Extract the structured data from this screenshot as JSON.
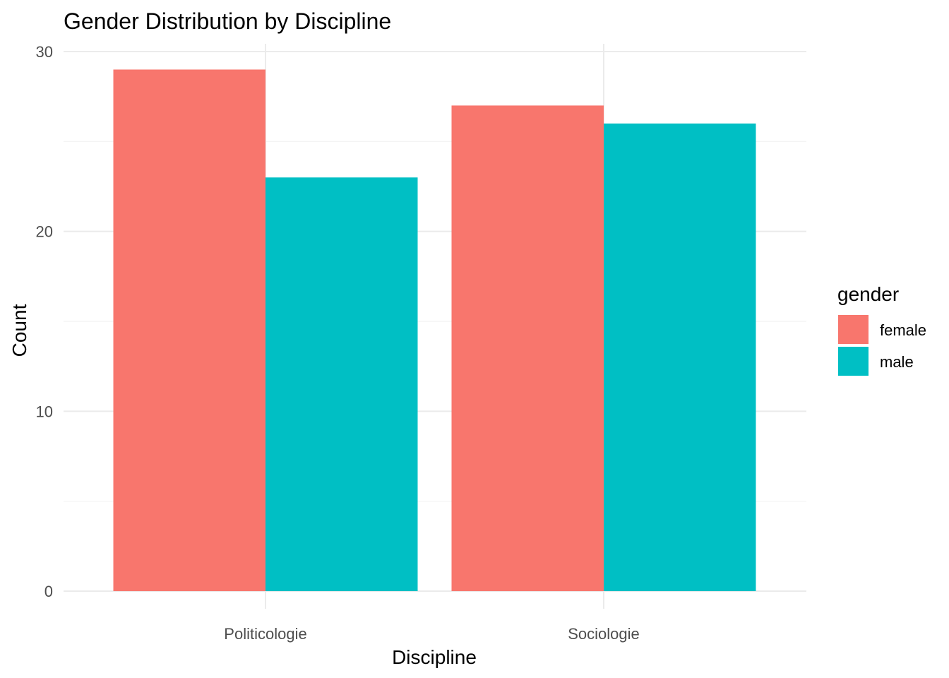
{
  "chart_data": {
    "type": "bar",
    "title": "Gender Distribution by Discipline",
    "xlabel": "Discipline",
    "ylabel": "Count",
    "categories": [
      "Politicologie",
      "Sociologie"
    ],
    "series": [
      {
        "name": "female",
        "values": [
          29,
          27
        ],
        "color": "#F8766D"
      },
      {
        "name": "male",
        "values": [
          23,
          26
        ],
        "color": "#00BFC4"
      }
    ],
    "ylim": [
      0,
      30
    ],
    "yticks": [
      0,
      10,
      20,
      30
    ],
    "legend": {
      "title": "gender",
      "position": "right"
    },
    "grid": true
  }
}
